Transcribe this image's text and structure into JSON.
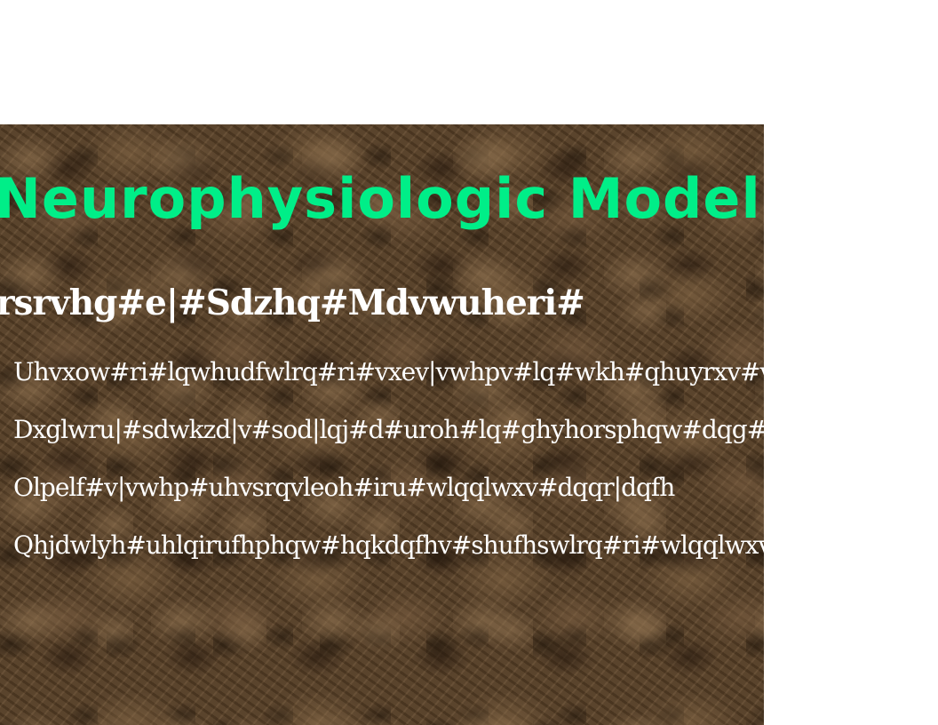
{
  "slide": {
    "title": "Neurophysiologic Model",
    "subtitle": "rsrvhg#e|#Sdzhq#Mdvwuheri#",
    "bullets": [
      "Uhvxow#ri#lqwhudfwlrq#ri#vxev|vwhpv#lq#wkh#qhuyrxv#v|vwhp",
      "Dxglwru|#sdwkzd|v#sod|lqj#d#uroh#lq#ghyhorsphqw#dqg#dsshdudqfh#ri#wlqqlwxv",
      "Olpelf#v|vwhp#uhvsrqvleoh#iru#wlqqlwxv#dqqr|dqfh",
      "Qhjdwlyh#uhlqirufhphqw#hqkdqfhv#shufhswlrq#ri#wlqqlwxv#dqg#lqfuhdvhv#wlph#lw#lv#shufhlyhg"
    ]
  }
}
